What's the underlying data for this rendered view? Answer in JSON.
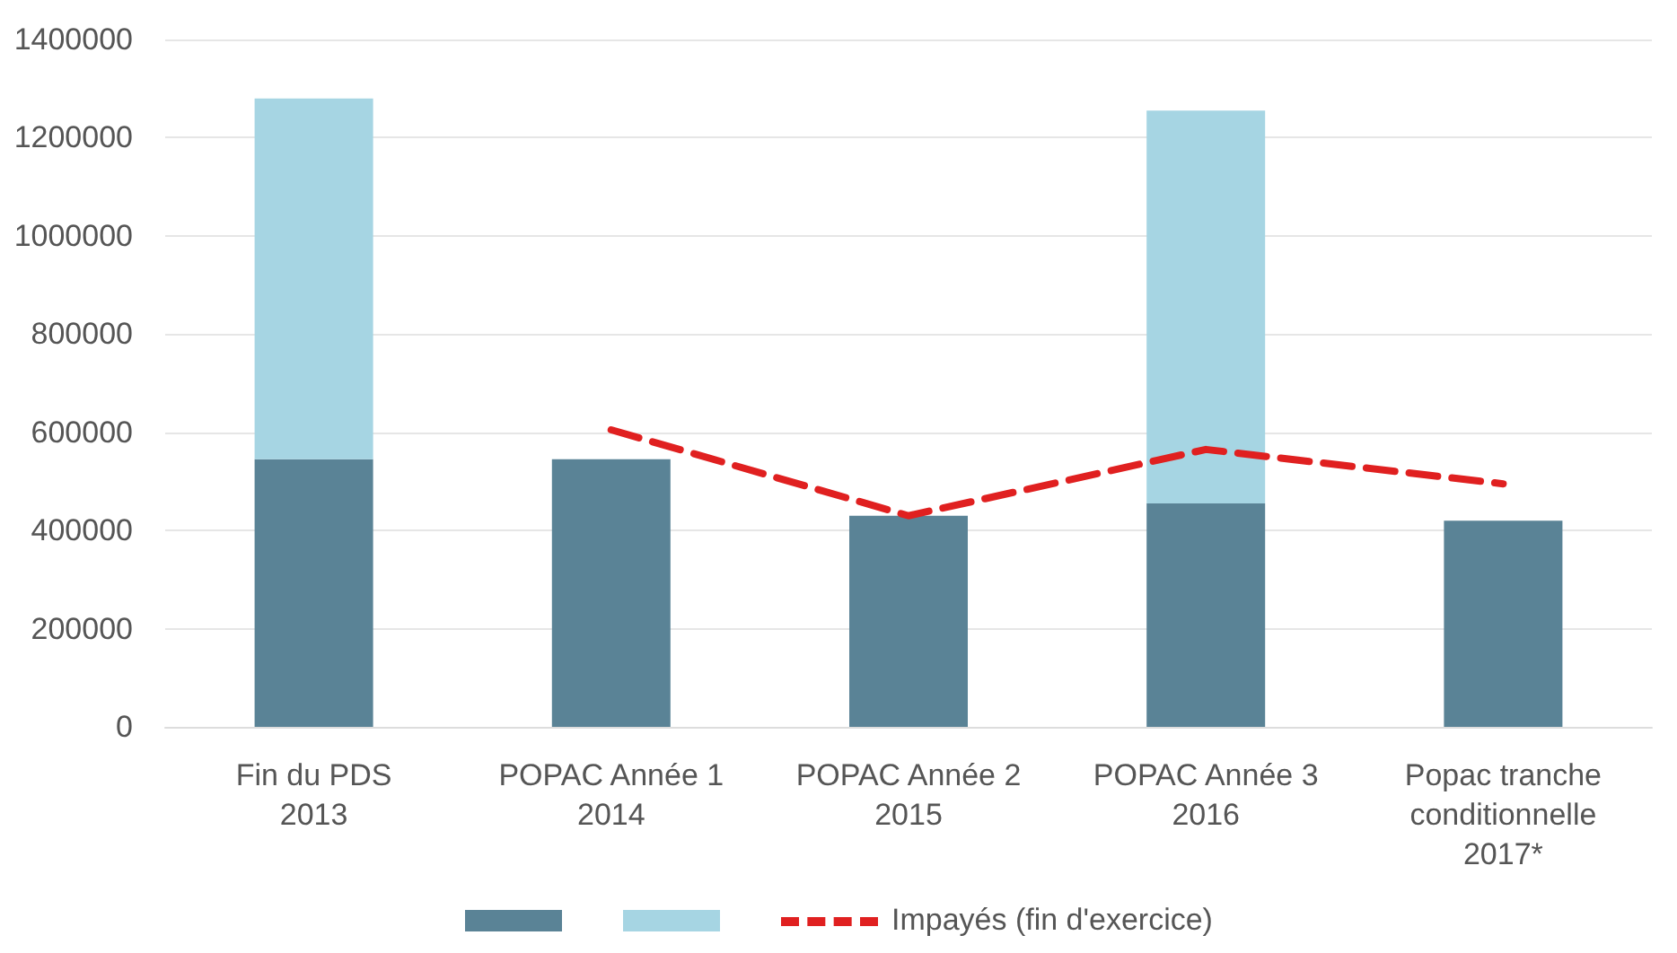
{
  "chart_data": {
    "type": "bar",
    "stacked": true,
    "categories": [
      "Fin du PDS\n2013",
      "POPAC Année 1\n2014",
      "POPAC Année 2\n2015",
      "POPAC Année 3\n2016",
      "Popac tranche\nconditionnelle\n2017*"
    ],
    "series": [
      {
        "color": "#5a8396",
        "values": [
          545000,
          545000,
          430000,
          455000,
          420000
        ]
      },
      {
        "color": "#a6d5e3",
        "values": [
          735000,
          null,
          null,
          800000,
          null
        ]
      },
      {
        "type": "line",
        "name": "Impayés (fin d'exercice)",
        "color": "#e02020",
        "line_style": "dashed",
        "marker": "none",
        "values": [
          null,
          605000,
          430000,
          565000,
          495000
        ]
      }
    ],
    "ylim": [
      0,
      1400000
    ],
    "yticks": [
      0,
      200000,
      400000,
      600000,
      800000,
      1000000,
      1200000,
      1400000
    ],
    "grid": "y",
    "legend": "bottom"
  }
}
